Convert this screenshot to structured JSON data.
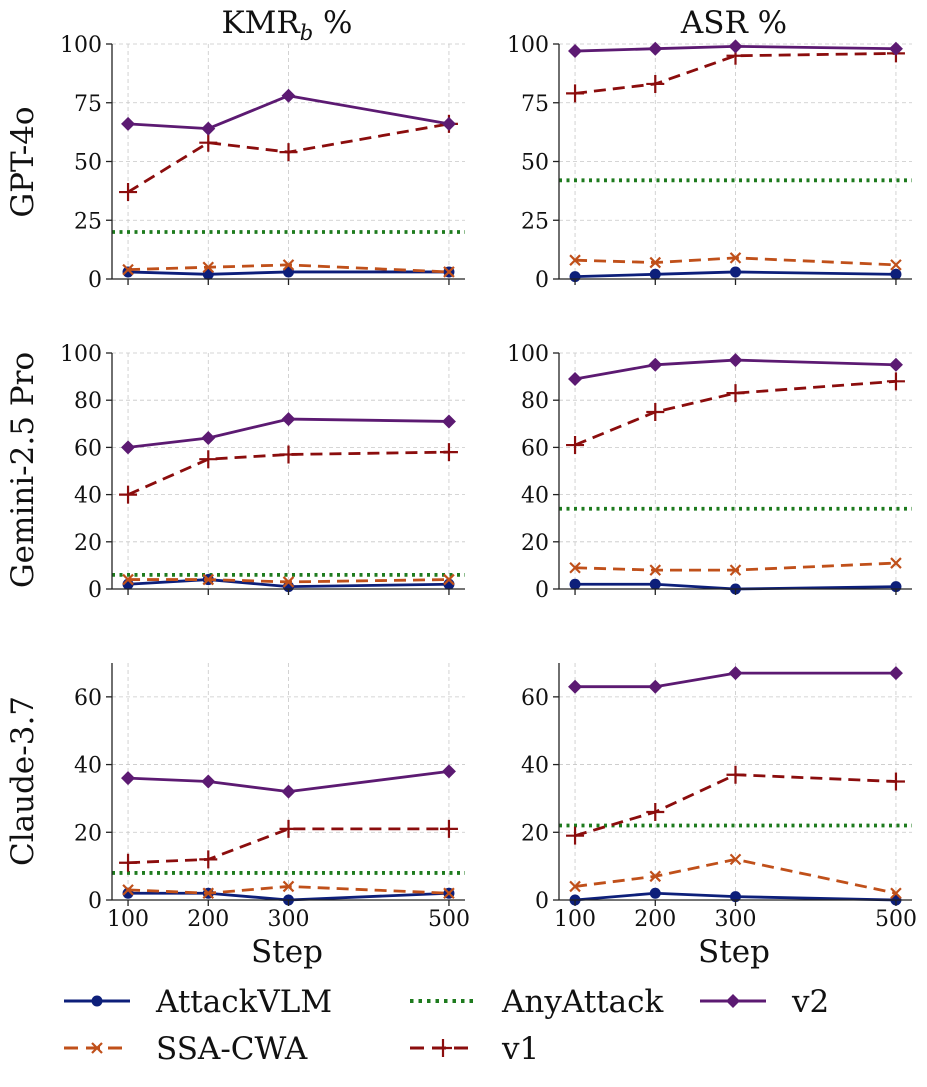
{
  "column_titles": {
    "kmr_base": "KMR",
    "kmr_sub": "b",
    "kmr_suffix": " %",
    "asr": "ASR %"
  },
  "row_labels": [
    "GPT-4o",
    "Gemini-2.5 Pro",
    "Claude-3.7"
  ],
  "xlabel": "Step",
  "legend": [
    {
      "name": "AttackVLM",
      "color": "#0d1f7a",
      "dash": "solid",
      "marker": "circle"
    },
    {
      "name": "AnyAttack",
      "color": "#1e7b1e",
      "dash": "dotted",
      "marker": "none"
    },
    {
      "name": "v2",
      "color": "#5c1a72",
      "dash": "solid",
      "marker": "diamond"
    },
    {
      "name": "SSA-CWA",
      "color": "#c0501a",
      "dash": "dashed",
      "marker": "x"
    },
    {
      "name": "v1",
      "color": "#8b0d0d",
      "dash": "dashed",
      "marker": "plus"
    }
  ],
  "chart_data": [
    {
      "type": "line",
      "title": "KMR_b %",
      "model": "GPT-4o",
      "x": [
        100,
        200,
        300,
        500
      ],
      "xticks": [
        100,
        200,
        300,
        500
      ],
      "xlim": [
        80,
        520
      ],
      "ylim": [
        0,
        100
      ],
      "yticks": [
        0,
        25,
        50,
        75,
        100
      ],
      "series": [
        {
          "name": "AttackVLM",
          "values": [
            3,
            2,
            3,
            3
          ]
        },
        {
          "name": "SSA-CWA",
          "values": [
            4,
            5,
            6,
            3
          ]
        },
        {
          "name": "AnyAttack",
          "values": [
            20,
            20,
            20,
            20
          ]
        },
        {
          "name": "v1",
          "values": [
            37,
            58,
            54,
            66
          ]
        },
        {
          "name": "v2",
          "values": [
            66,
            64,
            78,
            66
          ]
        }
      ]
    },
    {
      "type": "line",
      "title": "ASR %",
      "model": "GPT-4o",
      "x": [
        100,
        200,
        300,
        500
      ],
      "xticks": [
        100,
        200,
        300,
        500
      ],
      "xlim": [
        80,
        520
      ],
      "ylim": [
        0,
        100
      ],
      "yticks": [
        0,
        25,
        50,
        75,
        100
      ],
      "series": [
        {
          "name": "AttackVLM",
          "values": [
            1,
            2,
            3,
            2
          ]
        },
        {
          "name": "SSA-CWA",
          "values": [
            8,
            7,
            9,
            6
          ]
        },
        {
          "name": "AnyAttack",
          "values": [
            42,
            42,
            42,
            42
          ]
        },
        {
          "name": "v1",
          "values": [
            79,
            83,
            95,
            96
          ]
        },
        {
          "name": "v2",
          "values": [
            97,
            98,
            99,
            98
          ]
        }
      ]
    },
    {
      "type": "line",
      "title": "KMR_b %",
      "model": "Gemini-2.5 Pro",
      "x": [
        100,
        200,
        300,
        500
      ],
      "xticks": [
        100,
        200,
        300,
        500
      ],
      "xlim": [
        80,
        520
      ],
      "ylim": [
        0,
        100
      ],
      "yticks": [
        0,
        20,
        40,
        60,
        80,
        100
      ],
      "series": [
        {
          "name": "AttackVLM",
          "values": [
            2,
            4,
            1,
            2
          ]
        },
        {
          "name": "SSA-CWA",
          "values": [
            4,
            4,
            3,
            4
          ]
        },
        {
          "name": "AnyAttack",
          "values": [
            6,
            6,
            6,
            6
          ]
        },
        {
          "name": "v1",
          "values": [
            40,
            55,
            57,
            58
          ]
        },
        {
          "name": "v2",
          "values": [
            60,
            64,
            72,
            71
          ]
        }
      ]
    },
    {
      "type": "line",
      "title": "ASR %",
      "model": "Gemini-2.5 Pro",
      "x": [
        100,
        200,
        300,
        500
      ],
      "xticks": [
        100,
        200,
        300,
        500
      ],
      "xlim": [
        80,
        520
      ],
      "ylim": [
        0,
        100
      ],
      "yticks": [
        0,
        20,
        40,
        60,
        80,
        100
      ],
      "series": [
        {
          "name": "AttackVLM",
          "values": [
            2,
            2,
            0,
            1
          ]
        },
        {
          "name": "SSA-CWA",
          "values": [
            9,
            8,
            8,
            11
          ]
        },
        {
          "name": "AnyAttack",
          "values": [
            34,
            34,
            34,
            34
          ]
        },
        {
          "name": "v1",
          "values": [
            61,
            75,
            83,
            88
          ]
        },
        {
          "name": "v2",
          "values": [
            89,
            95,
            97,
            95
          ]
        }
      ]
    },
    {
      "type": "line",
      "title": "KMR_b %",
      "model": "Claude-3.7",
      "x": [
        100,
        200,
        300,
        500
      ],
      "xticks": [
        100,
        200,
        300,
        500
      ],
      "xlim": [
        80,
        520
      ],
      "ylim": [
        0,
        70
      ],
      "yticks": [
        0,
        20,
        40,
        60
      ],
      "series": [
        {
          "name": "AttackVLM",
          "values": [
            2,
            2,
            0,
            2
          ]
        },
        {
          "name": "SSA-CWA",
          "values": [
            3,
            2,
            4,
            2
          ]
        },
        {
          "name": "AnyAttack",
          "values": [
            8,
            8,
            8,
            8
          ]
        },
        {
          "name": "v1",
          "values": [
            11,
            12,
            21,
            21
          ]
        },
        {
          "name": "v2",
          "values": [
            36,
            35,
            32,
            38
          ]
        }
      ]
    },
    {
      "type": "line",
      "title": "ASR %",
      "model": "Claude-3.7",
      "x": [
        100,
        200,
        300,
        500
      ],
      "xticks": [
        100,
        200,
        300,
        500
      ],
      "xlim": [
        80,
        520
      ],
      "ylim": [
        0,
        70
      ],
      "yticks": [
        0,
        20,
        40,
        60
      ],
      "series": [
        {
          "name": "AttackVLM",
          "values": [
            0,
            2,
            1,
            0
          ]
        },
        {
          "name": "SSA-CWA",
          "values": [
            4,
            7,
            12,
            2
          ]
        },
        {
          "name": "AnyAttack",
          "values": [
            22,
            22,
            22,
            22
          ]
        },
        {
          "name": "v1",
          "values": [
            19,
            26,
            37,
            35
          ]
        },
        {
          "name": "v2",
          "values": [
            63,
            63,
            67,
            67
          ]
        }
      ]
    }
  ]
}
